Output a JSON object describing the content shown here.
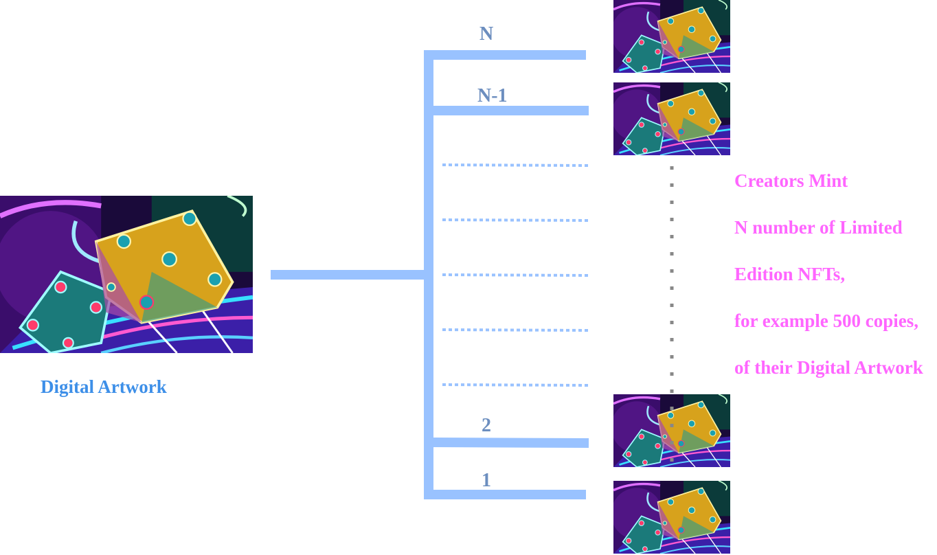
{
  "source": {
    "label": "Digital Artwork"
  },
  "editions": {
    "top_label": "N",
    "second_label": "N-1",
    "third_last_label": "2",
    "last_label": "1"
  },
  "description": {
    "lines": [
      "Creators Mint",
      "N number of Limited",
      "Edition NFTs,",
      "for example 500 copies,",
      "of their Digital Artwork"
    ]
  },
  "colors": {
    "branch": "#99c2ff",
    "edition_label": "#6c8ebf",
    "source_label": "#3d8fe8",
    "description": "#ff66ff",
    "ellipsis_dots": "#888888"
  },
  "icons": {
    "artwork": "neon-dice-image"
  }
}
